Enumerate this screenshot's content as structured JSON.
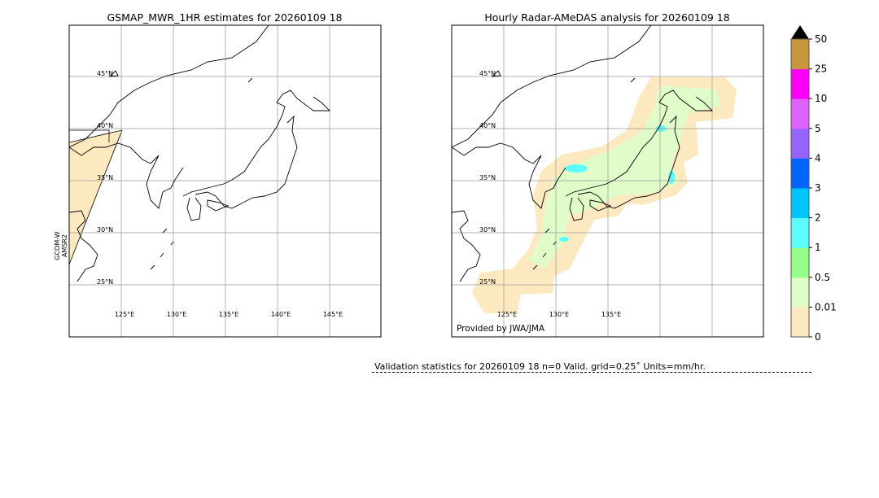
{
  "left_panel": {
    "title": "GSMAP_MWR_1HR estimates for 20260109 18",
    "sensor_label": [
      "GCOM-W",
      "AMSR2"
    ],
    "lat_labels": [
      "45°N",
      "40°N",
      "35°N",
      "30°N",
      "25°N"
    ],
    "lon_labels": [
      "125°E",
      "130°E",
      "135°E",
      "140°E",
      "145°E"
    ]
  },
  "right_panel": {
    "title": "Hourly Radar-AMeDAS analysis for 20260109 18",
    "credit": "Provided by JWA/JMA",
    "lat_labels": [
      "45°N",
      "40°N",
      "35°N",
      "30°N",
      "25°N"
    ],
    "lon_labels": [
      "125°E",
      "130°E",
      "135°E"
    ]
  },
  "colorbar": {
    "ticks": [
      "0",
      "0.01",
      "0.5",
      "1",
      "2",
      "3",
      "4",
      "5",
      "10",
      "25",
      "50"
    ],
    "colors": [
      "#fde9c0",
      "#e0fcc8",
      "#96fc8a",
      "#5cfcfc",
      "#00c6fc",
      "#0064fc",
      "#9664fc",
      "#dc64fc",
      "#fc00fc",
      "#c8963c"
    ],
    "extend_color": "#000000"
  },
  "validation": {
    "text": "Validation statistics for 20260109 18  n=0 Valid. grid=0.25˚ Units=mm/hr."
  }
}
